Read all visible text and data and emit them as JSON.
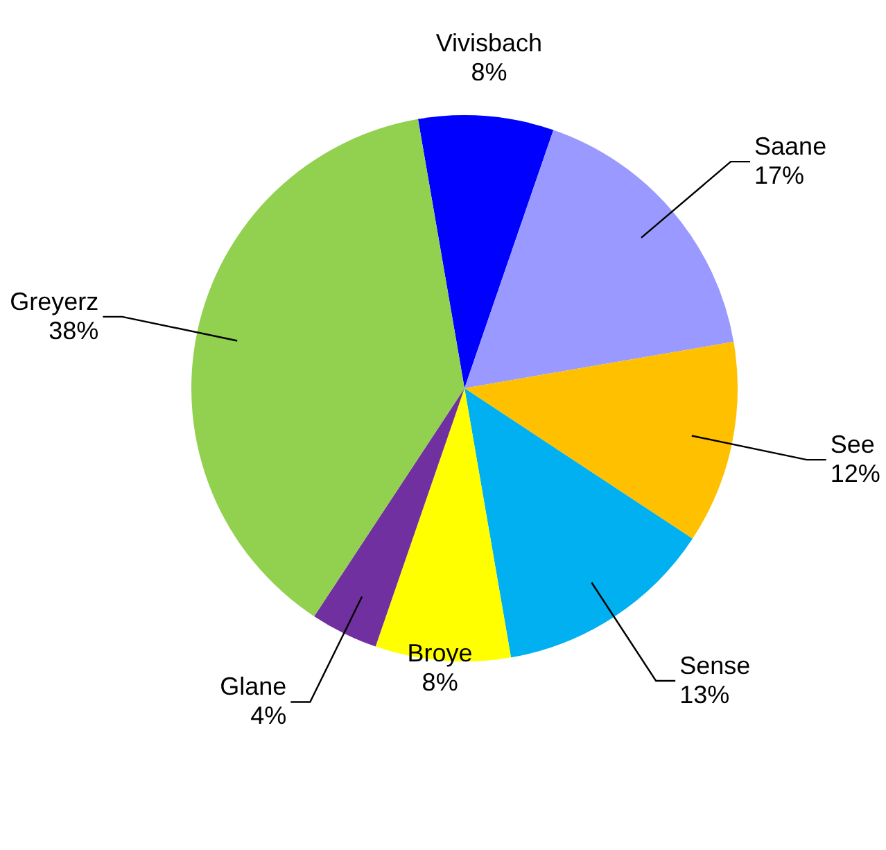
{
  "chart_data": {
    "type": "pie",
    "categories": [
      "Vivisbach",
      "Saane",
      "See",
      "Sense",
      "Broye",
      "Glane",
      "Greyerz"
    ],
    "values": [
      8,
      17,
      12,
      13,
      8,
      4,
      38
    ],
    "value_labels": [
      "8%",
      "17%",
      "12%",
      "13%",
      "8%",
      "4%",
      "38%"
    ],
    "colors": [
      "#0000ff",
      "#9999ff",
      "#ffc000",
      "#00b0f0",
      "#ffff00",
      "#7030a0",
      "#92d050"
    ],
    "legend": false
  }
}
